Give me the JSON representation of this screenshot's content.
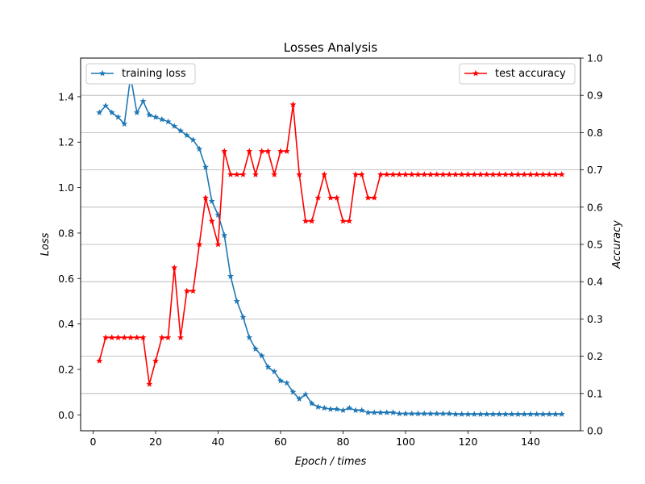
{
  "chart_data": {
    "type": "line",
    "title": "Losses Analysis",
    "xlabel": "Epoch / times",
    "ylabel_left": "Loss",
    "ylabel_right": "Accuracy",
    "xlim": [
      -4,
      156
    ],
    "ylim_left": [
      -0.07,
      1.57
    ],
    "ylim_right": [
      0.0,
      1.0
    ],
    "xticks": [
      0,
      20,
      40,
      60,
      80,
      100,
      120,
      140
    ],
    "yticks_left": [
      0.0,
      0.2,
      0.4,
      0.6,
      0.8,
      1.0,
      1.2,
      1.4
    ],
    "yticks_right": [
      0.0,
      0.1,
      0.2,
      0.3,
      0.4,
      0.5,
      0.6,
      0.7,
      0.8,
      0.9,
      1.0
    ],
    "ytick_labels_left": [
      "0.0",
      "0.2",
      "0.4",
      "0.6",
      "0.8",
      "1.0",
      "1.2",
      "1.4"
    ],
    "ytick_labels_right": [
      "0.0",
      "0.1",
      "0.2",
      "0.3",
      "0.4",
      "0.5",
      "0.6",
      "0.7",
      "0.8",
      "0.9",
      "1.0"
    ],
    "grid": "horizontal lines at right-axis ticks",
    "series": [
      {
        "name": "training loss",
        "axis": "left",
        "color": "#1f77b4",
        "marker": "star",
        "legend_position": "upper-left",
        "x": [
          2,
          4,
          6,
          8,
          10,
          12,
          14,
          16,
          18,
          20,
          22,
          24,
          26,
          28,
          30,
          32,
          34,
          36,
          38,
          40,
          42,
          44,
          46,
          48,
          50,
          52,
          54,
          56,
          58,
          60,
          62,
          64,
          66,
          68,
          70,
          72,
          74,
          76,
          78,
          80,
          82,
          84,
          86,
          88,
          90,
          92,
          94,
          96,
          98,
          100,
          102,
          104,
          106,
          108,
          110,
          112,
          114,
          116,
          118,
          120,
          122,
          124,
          126,
          128,
          130,
          132,
          134,
          136,
          138,
          140,
          142,
          144,
          146,
          148,
          150
        ],
        "values": [
          1.33,
          1.36,
          1.33,
          1.31,
          1.28,
          1.49,
          1.33,
          1.38,
          1.32,
          1.31,
          1.3,
          1.29,
          1.27,
          1.25,
          1.23,
          1.21,
          1.17,
          1.09,
          0.94,
          0.88,
          0.79,
          0.61,
          0.5,
          0.43,
          0.34,
          0.29,
          0.26,
          0.21,
          0.19,
          0.15,
          0.14,
          0.1,
          0.07,
          0.09,
          0.05,
          0.035,
          0.03,
          0.025,
          0.025,
          0.02,
          0.03,
          0.02,
          0.02,
          0.01,
          0.01,
          0.01,
          0.01,
          0.01,
          0.005,
          0.005,
          0.005,
          0.005,
          0.005,
          0.005,
          0.005,
          0.005,
          0.005,
          0.003,
          0.003,
          0.003,
          0.003,
          0.003,
          0.003,
          0.003,
          0.003,
          0.003,
          0.003,
          0.003,
          0.003,
          0.003,
          0.003,
          0.003,
          0.003,
          0.003,
          0.003
        ]
      },
      {
        "name": "test accuracy",
        "axis": "right",
        "color": "#ff0000",
        "marker": "star",
        "legend_position": "upper-right",
        "x": [
          2,
          4,
          6,
          8,
          10,
          12,
          14,
          16,
          18,
          20,
          22,
          24,
          26,
          28,
          30,
          32,
          34,
          36,
          38,
          40,
          42,
          44,
          46,
          48,
          50,
          52,
          54,
          56,
          58,
          60,
          62,
          64,
          66,
          68,
          70,
          72,
          74,
          76,
          78,
          80,
          82,
          84,
          86,
          88,
          90,
          92,
          94,
          96,
          98,
          100,
          102,
          104,
          106,
          108,
          110,
          112,
          114,
          116,
          118,
          120,
          122,
          124,
          126,
          128,
          130,
          132,
          134,
          136,
          138,
          140,
          142,
          144,
          146,
          148,
          150
        ],
        "values": [
          0.1875,
          0.25,
          0.25,
          0.25,
          0.25,
          0.25,
          0.25,
          0.25,
          0.125,
          0.1875,
          0.25,
          0.25,
          0.4375,
          0.25,
          0.375,
          0.375,
          0.5,
          0.625,
          0.5625,
          0.5,
          0.75,
          0.6875,
          0.6875,
          0.6875,
          0.75,
          0.6875,
          0.75,
          0.75,
          0.6875,
          0.75,
          0.75,
          0.875,
          0.6875,
          0.5625,
          0.5625,
          0.625,
          0.6875,
          0.625,
          0.625,
          0.5625,
          0.5625,
          0.6875,
          0.6875,
          0.625,
          0.625,
          0.6875,
          0.6875,
          0.6875,
          0.6875,
          0.6875,
          0.6875,
          0.6875,
          0.6875,
          0.6875,
          0.6875,
          0.6875,
          0.6875,
          0.6875,
          0.6875,
          0.6875,
          0.6875,
          0.6875,
          0.6875,
          0.6875,
          0.6875,
          0.6875,
          0.6875,
          0.6875,
          0.6875,
          0.6875,
          0.6875,
          0.6875,
          0.6875,
          0.6875,
          0.6875
        ]
      }
    ]
  }
}
